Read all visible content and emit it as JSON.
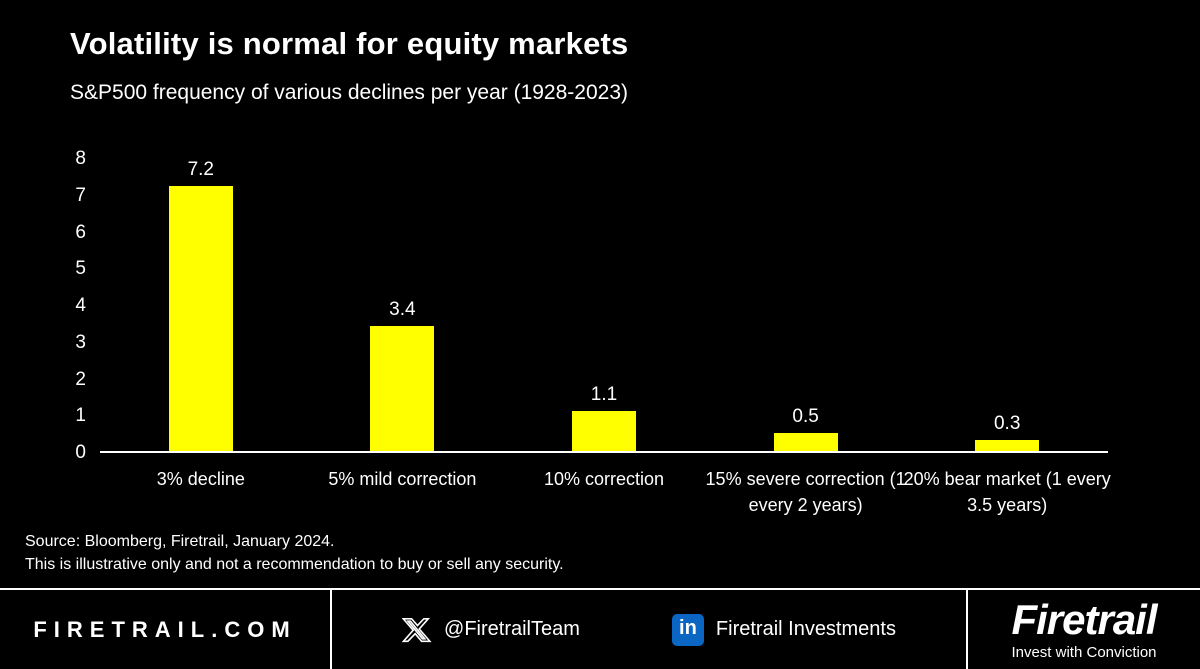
{
  "header": {
    "title": "Volatility is normal for equity markets",
    "subtitle": "S&P500 frequency of various declines per year (1928-2023)"
  },
  "chart_data": {
    "type": "bar",
    "categories": [
      "3% decline",
      "5% mild correction",
      "10% correction",
      "15% severe correction (1 every 2 years)",
      "20% bear market (1 every 3.5 years)"
    ],
    "values": [
      7.2,
      3.4,
      1.1,
      0.5,
      0.3
    ],
    "value_labels": [
      "7.2",
      "3.4",
      "1.1",
      "0.5",
      "0.3"
    ],
    "title": "Volatility is normal for equity markets",
    "subtitle": "S&P500 frequency of various declines per year (1928-2023)",
    "xlabel": "",
    "ylabel": "",
    "ylim": [
      0,
      8
    ],
    "yticks": [
      0,
      1,
      2,
      3,
      4,
      5,
      6,
      7,
      8
    ],
    "grid": false,
    "legend": false,
    "bar_color": "#FFFF00",
    "background": "#000000"
  },
  "source": {
    "line1": "Source: Bloomberg, Firetrail, January 2024.",
    "line2": "This is illustrative only and not a recommendation to buy or sell any security."
  },
  "footer": {
    "website": "FIRETRAIL.COM",
    "x_icon": "x-logo",
    "x_handle": "@FiretrailTeam",
    "linkedin_icon": "in",
    "linkedin_name": "Firetrail Investments",
    "brand_logo": "Firetrail",
    "brand_tagline": "Invest with Conviction"
  },
  "colors": {
    "bar": "#FFFF00",
    "linkedin_blue": "#0A66C2",
    "text": "#FFFFFF",
    "background": "#000000"
  }
}
